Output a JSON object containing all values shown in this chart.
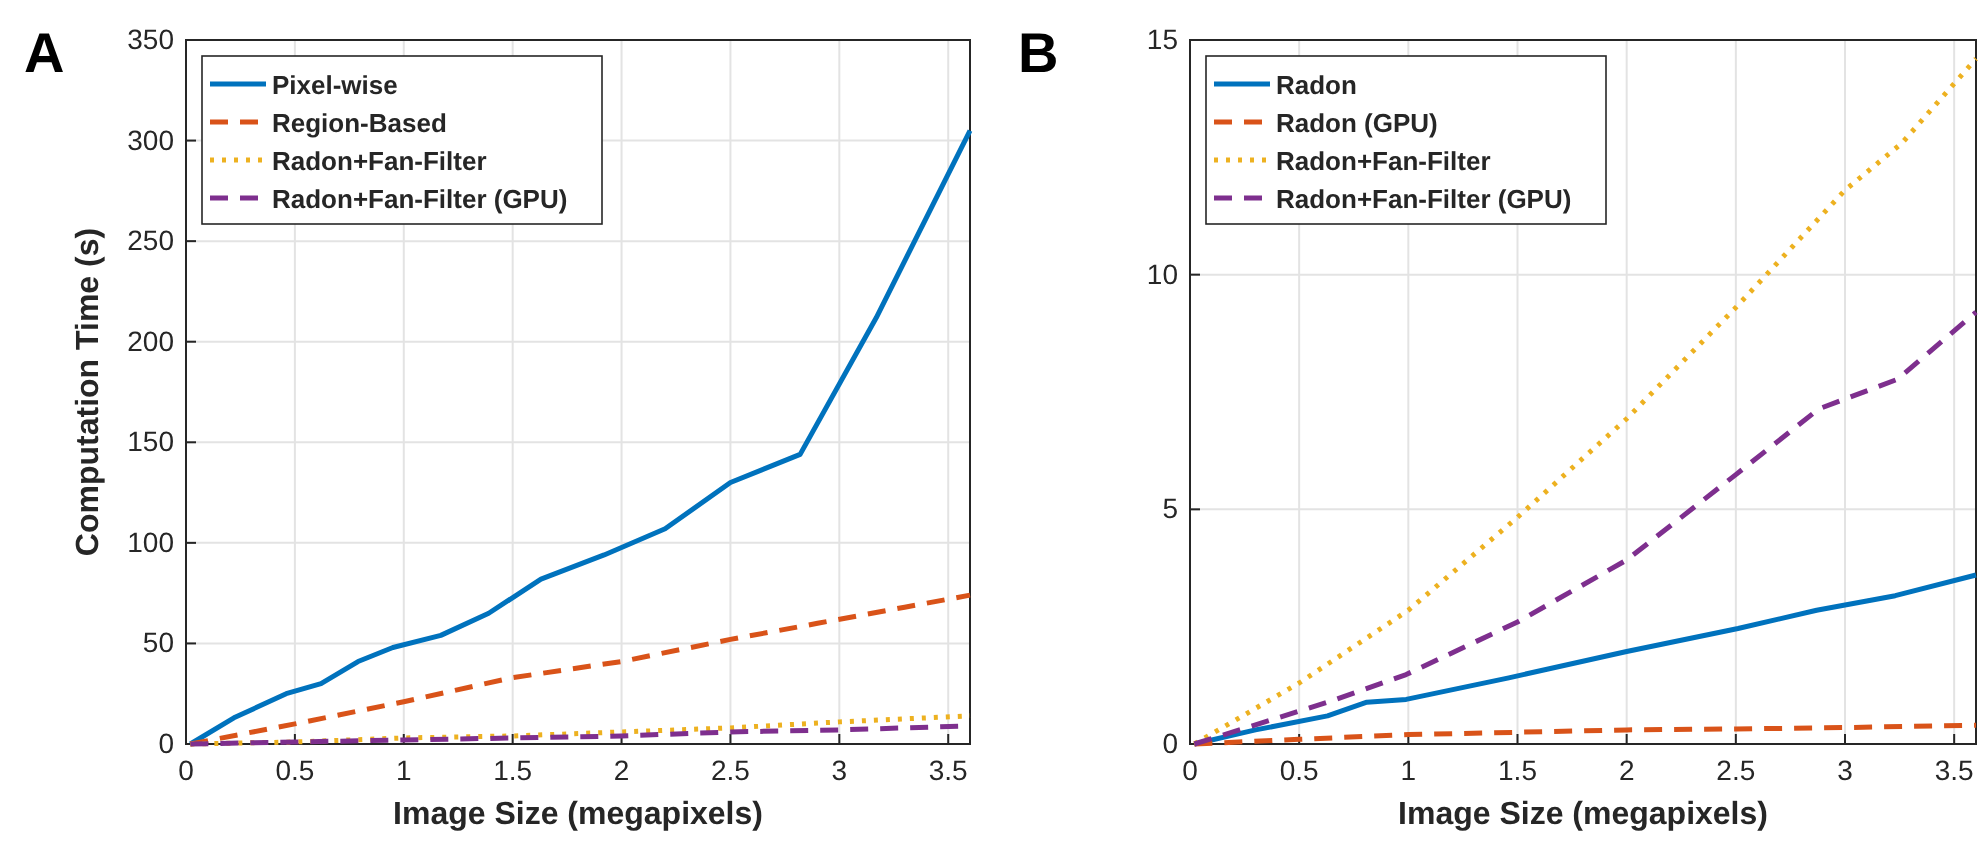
{
  "chart_data": [
    {
      "type": "line",
      "title": "A",
      "xlabel": "Image Size (megapixels)",
      "ylabel": "Computation Time (s)",
      "xlim": [
        0,
        3.6
      ],
      "ylim": [
        0,
        350
      ],
      "xticks": [
        0,
        0.5,
        1,
        1.5,
        2,
        2.5,
        3,
        3.5
      ],
      "yticks": [
        0,
        50,
        100,
        150,
        200,
        250,
        300,
        350
      ],
      "grid": true,
      "legend": "top left",
      "series": [
        {
          "name": "Pixel-wise",
          "color": "#0072bd",
          "line_style": "solid",
          "x": [
            0.02,
            0.22,
            0.46,
            0.62,
            0.79,
            0.95,
            1.17,
            1.39,
            1.63,
            1.92,
            2.2,
            2.5,
            2.82,
            3.17,
            3.6
          ],
          "values": [
            0,
            13,
            25,
            30,
            41,
            48,
            54,
            65,
            82,
            94,
            107,
            130,
            144,
            212,
            305
          ]
        },
        {
          "name": "Region-Based",
          "color": "#d95319",
          "line_style": "dashed",
          "x": [
            0.02,
            0.5,
            1,
            1.5,
            2,
            2.5,
            2.9,
            3.3,
            3.6
          ],
          "values": [
            0,
            10,
            21,
            33,
            41,
            52,
            60,
            68,
            74
          ]
        },
        {
          "name": "Radon+Fan-Filter",
          "color": "#edb120",
          "line_style": "dotted",
          "x": [
            0.02,
            0.5,
            1,
            1.5,
            2,
            2.5,
            3,
            3.6
          ],
          "values": [
            0,
            1,
            3,
            4,
            6,
            8,
            11,
            14
          ]
        },
        {
          "name": "Radon+Fan-Filter (GPU)",
          "color": "#7e2f8e",
          "line_style": "dashed",
          "x": [
            0.02,
            0.5,
            1,
            1.5,
            2,
            2.5,
            3,
            3.6
          ],
          "values": [
            0,
            1,
            2,
            3,
            4,
            6,
            7,
            9
          ]
        }
      ]
    },
    {
      "type": "line",
      "title": "B",
      "xlabel": "Image Size (megapixels)",
      "xlim": [
        0,
        3.6
      ],
      "ylim": [
        0,
        15
      ],
      "xticks": [
        0,
        0.5,
        1,
        1.5,
        2,
        2.5,
        3,
        3.5
      ],
      "yticks": [
        0,
        5,
        10,
        15
      ],
      "grid": true,
      "legend": "top left",
      "series": [
        {
          "name": "Radon",
          "color": "#0072bd",
          "line_style": "solid",
          "x": [
            0.02,
            0.3,
            0.63,
            0.81,
            0.99,
            1.46,
            2.0,
            2.51,
            2.87,
            3.23,
            3.6
          ],
          "values": [
            0,
            0.3,
            0.6,
            0.89,
            0.95,
            1.41,
            1.97,
            2.46,
            2.85,
            3.16,
            3.6
          ]
        },
        {
          "name": "Radon (GPU)",
          "color": "#d95319",
          "line_style": "dashed",
          "x": [
            0.02,
            0.5,
            1,
            1.5,
            2,
            2.5,
            3,
            3.6
          ],
          "values": [
            0,
            0.1,
            0.2,
            0.25,
            0.3,
            0.32,
            0.35,
            0.4
          ]
        },
        {
          "name": "Radon+Fan-Filter",
          "color": "#edb120",
          "line_style": "dotted",
          "x": [
            0.02,
            0.5,
            1,
            1.5,
            2,
            2.5,
            3,
            3.26,
            3.6
          ],
          "values": [
            0,
            1.3,
            2.85,
            4.83,
            6.93,
            9.3,
            11.8,
            12.8,
            14.6
          ]
        },
        {
          "name": "Radon+Fan-Filter (GPU)",
          "color": "#7e2f8e",
          "line_style": "dashed",
          "x": [
            0.02,
            0.63,
            0.99,
            1.5,
            2.0,
            2.5,
            2.88,
            3.24,
            3.6
          ],
          "values": [
            0,
            0.89,
            1.48,
            2.6,
            3.92,
            5.74,
            7.14,
            7.77,
            9.2
          ]
        }
      ]
    }
  ]
}
